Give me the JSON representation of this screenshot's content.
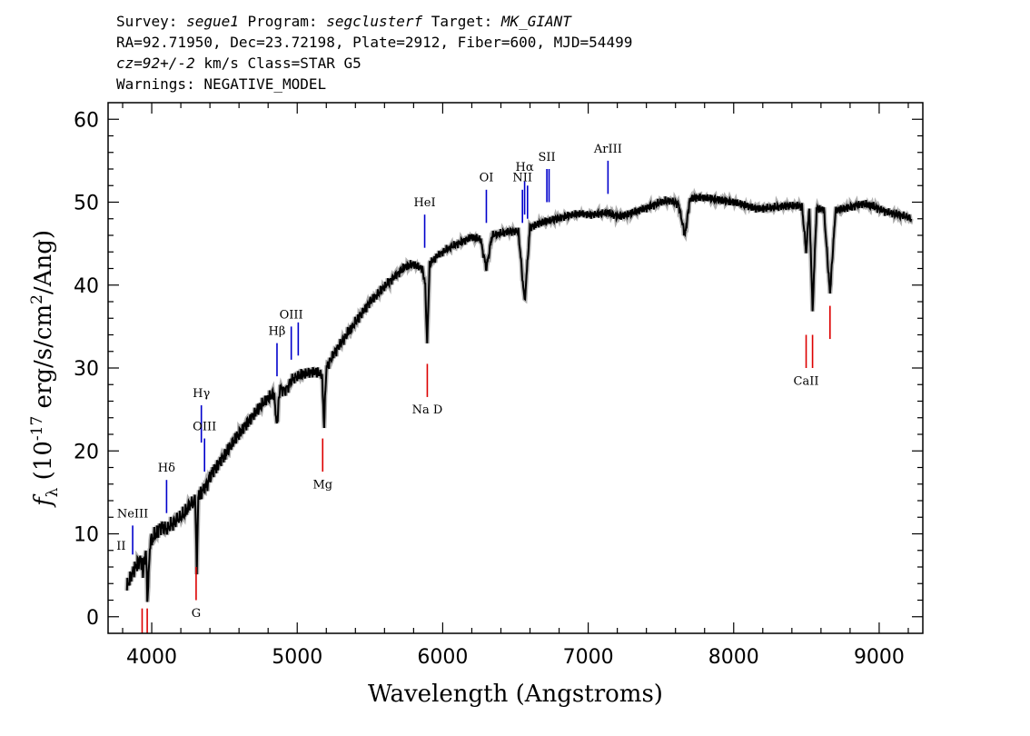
{
  "header": {
    "line1": {
      "survey_label": "Survey: ",
      "survey": "segue1",
      "program_label": " Program: ",
      "program": "segclusterf",
      "target_label": " Target: ",
      "target": "MK_GIANT"
    },
    "line2": "RA=92.71950, Dec=23.72198, Plate=2912, Fiber=600, MJD=54499",
    "line3": {
      "cz": "cz=92+/-2",
      "rest": " km/s Class=STAR G5"
    },
    "line4": "Warnings: NEGATIVE_MODEL"
  },
  "chart_data": {
    "type": "line",
    "title": "",
    "xlabel": "Wavelength (Angstroms)",
    "ylabel_prefix": "f",
    "ylabel_sub": "λ",
    "ylabel_mid": " (10",
    "ylabel_exp": "-17",
    "ylabel_units": " erg/s/cm",
    "ylabel_exp2": "2",
    "ylabel_tail": "/Ang)",
    "xlim": [
      3700,
      9300
    ],
    "ylim": [
      -2,
      62
    ],
    "x_ticks": [
      4000,
      5000,
      6000,
      7000,
      8000,
      9000
    ],
    "y_ticks": [
      0,
      10,
      20,
      30,
      40,
      50,
      60
    ],
    "x_tick_labels": [
      "4000",
      "5000",
      "6000",
      "7000",
      "8000",
      "9000"
    ],
    "y_tick_labels": [
      "0",
      "10",
      "20",
      "30",
      "40",
      "50",
      "60"
    ],
    "grid": false,
    "colors": {
      "spectrum": "#000000",
      "error_band": "#b0b0b0",
      "emission": "#0000cc",
      "absorption": "#dd0000"
    },
    "series": [
      {
        "x": [
          3830,
          3860,
          3890,
          3920,
          3940,
          3960,
          3970,
          3990,
          4030,
          4060,
          4100,
          4140,
          4180,
          4220,
          4260,
          4300,
          4310,
          4320,
          4340,
          4380,
          4420,
          4480,
          4540,
          4600,
          4660,
          4720,
          4780,
          4840,
          4860,
          4880,
          4920,
          4960,
          5000,
          5060,
          5120,
          5170,
          5185,
          5200,
          5260,
          5320,
          5380,
          5440,
          5500,
          5560,
          5620,
          5680,
          5740,
          5800,
          5860,
          5880,
          5893,
          5910,
          5960,
          6020,
          6080,
          6140,
          6200,
          6260,
          6300,
          6340,
          6400,
          6460,
          6520,
          6563,
          6600,
          6660,
          6720,
          6780,
          6840,
          6900,
          6960,
          7020,
          7080,
          7140,
          7200,
          7260,
          7320,
          7380,
          7440,
          7500,
          7560,
          7620,
          7665,
          7700,
          7760,
          7820,
          7880,
          7940,
          8000,
          8060,
          8120,
          8180,
          8240,
          8300,
          8360,
          8420,
          8470,
          8498,
          8520,
          8542,
          8570,
          8620,
          8662,
          8700,
          8760,
          8820,
          8880,
          8940,
          9000,
          9060,
          9120,
          9180,
          9220
        ],
        "y": [
          3.5,
          5,
          6,
          7,
          5.5,
          8,
          2,
          9,
          10,
          11,
          10.5,
          11.2,
          11.8,
          12.3,
          13.5,
          14,
          6,
          14.5,
          15,
          16,
          17.5,
          19,
          20.5,
          22,
          23.5,
          24.8,
          26,
          27,
          23,
          27.5,
          27.3,
          28.5,
          29,
          29.3,
          29.6,
          29.2,
          23,
          30,
          32,
          33.5,
          35,
          36.5,
          38,
          39,
          40.2,
          41.2,
          42.2,
          42.5,
          42,
          40,
          33,
          42.5,
          43.5,
          44.2,
          44.8,
          45.3,
          45.8,
          45.5,
          42,
          46,
          46.2,
          46.5,
          46.5,
          38,
          47,
          47.4,
          47.7,
          48,
          48.3,
          48.5,
          48.6,
          48.5,
          48.6,
          48.7,
          48.3,
          48.5,
          48.8,
          49.2,
          49.6,
          50,
          50.2,
          49.8,
          46,
          50.4,
          50.6,
          50.5,
          50.3,
          50.2,
          50,
          49.7,
          49.4,
          49.2,
          49.3,
          49.4,
          49.6,
          49.6,
          49.5,
          44,
          49.4,
          37,
          49.3,
          49.1,
          39,
          49,
          49.2,
          49.5,
          49.8,
          49.6,
          49.2,
          48.8,
          48.5,
          48.3,
          48
        ]
      }
    ],
    "emission_lines": [
      {
        "label": "NeIII",
        "x": 3869,
        "y0": 7.5,
        "y1": 11,
        "label_y": 12
      },
      {
        "label": "Hδ",
        "x": 4102,
        "y0": 12.5,
        "y1": 16.5,
        "label_y": 17.5
      },
      {
        "label": "Hγ",
        "x": 4341,
        "y0": 21,
        "y1": 25.5,
        "label_y": 26.5
      },
      {
        "label": "OIII",
        "x": 4363,
        "y0": 17.5,
        "y1": 21.5,
        "label_y": 22.5
      },
      {
        "label": "Hβ",
        "x": 4861,
        "y0": 29,
        "y1": 33,
        "label_y": 34
      },
      {
        "label": "OIII",
        "x": 4959,
        "y0": 31,
        "y1": 35,
        "label_y": 36
      },
      {
        "label": "",
        "x": 5007,
        "y0": 31.5,
        "y1": 35.5,
        "label_y": 0
      },
      {
        "label": "HeI",
        "x": 5876,
        "y0": 44.5,
        "y1": 48.5,
        "label_y": 49.5
      },
      {
        "label": "OI",
        "x": 6300,
        "y0": 47.5,
        "y1": 51.5,
        "label_y": 52.5
      },
      {
        "label": "NII",
        "x": 6548,
        "y0": 47.5,
        "y1": 51.5,
        "label_y": 52.5
      },
      {
        "label": "Hα",
        "x": 6563,
        "y0": 48.5,
        "y1": 52.5,
        "label_y": 53.8
      },
      {
        "label": "",
        "x": 6583,
        "y0": 48,
        "y1": 52,
        "label_y": 0
      },
      {
        "label": "SII",
        "x": 6716,
        "y0": 50,
        "y1": 54,
        "label_y": 55
      },
      {
        "label": "",
        "x": 6731,
        "y0": 50,
        "y1": 54,
        "label_y": 0
      },
      {
        "label": "ArIII",
        "x": 7136,
        "y0": 51,
        "y1": 55,
        "label_y": 56
      }
    ],
    "absorption_lines": [
      {
        "label": "",
        "x": 3934,
        "y0": -2,
        "y1": 1
      },
      {
        "label": "",
        "x": 3969,
        "y0": -2,
        "y1": 1
      },
      {
        "label": "G",
        "x": 4305,
        "y0": 2,
        "y1": 6,
        "label_y": 0
      },
      {
        "label": "Mg",
        "x": 5175,
        "y0": 17.5,
        "y1": 21.5,
        "label_y": 15.5
      },
      {
        "label": "Na  D",
        "x": 5894,
        "y0": 26.5,
        "y1": 30.5,
        "label_y": 24.5
      },
      {
        "label": "CaII",
        "x": 8498,
        "y0": 30,
        "y1": 34,
        "label_y": 28
      },
      {
        "label": "",
        "x": 8542,
        "y0": 30,
        "y1": 34,
        "label_y": 0
      },
      {
        "label": "",
        "x": 8662,
        "y0": 33.5,
        "y1": 37.5,
        "label_y": 0
      }
    ],
    "extra_labels": [
      {
        "label": "II",
        "x": 3790,
        "y": 8.1
      }
    ]
  }
}
